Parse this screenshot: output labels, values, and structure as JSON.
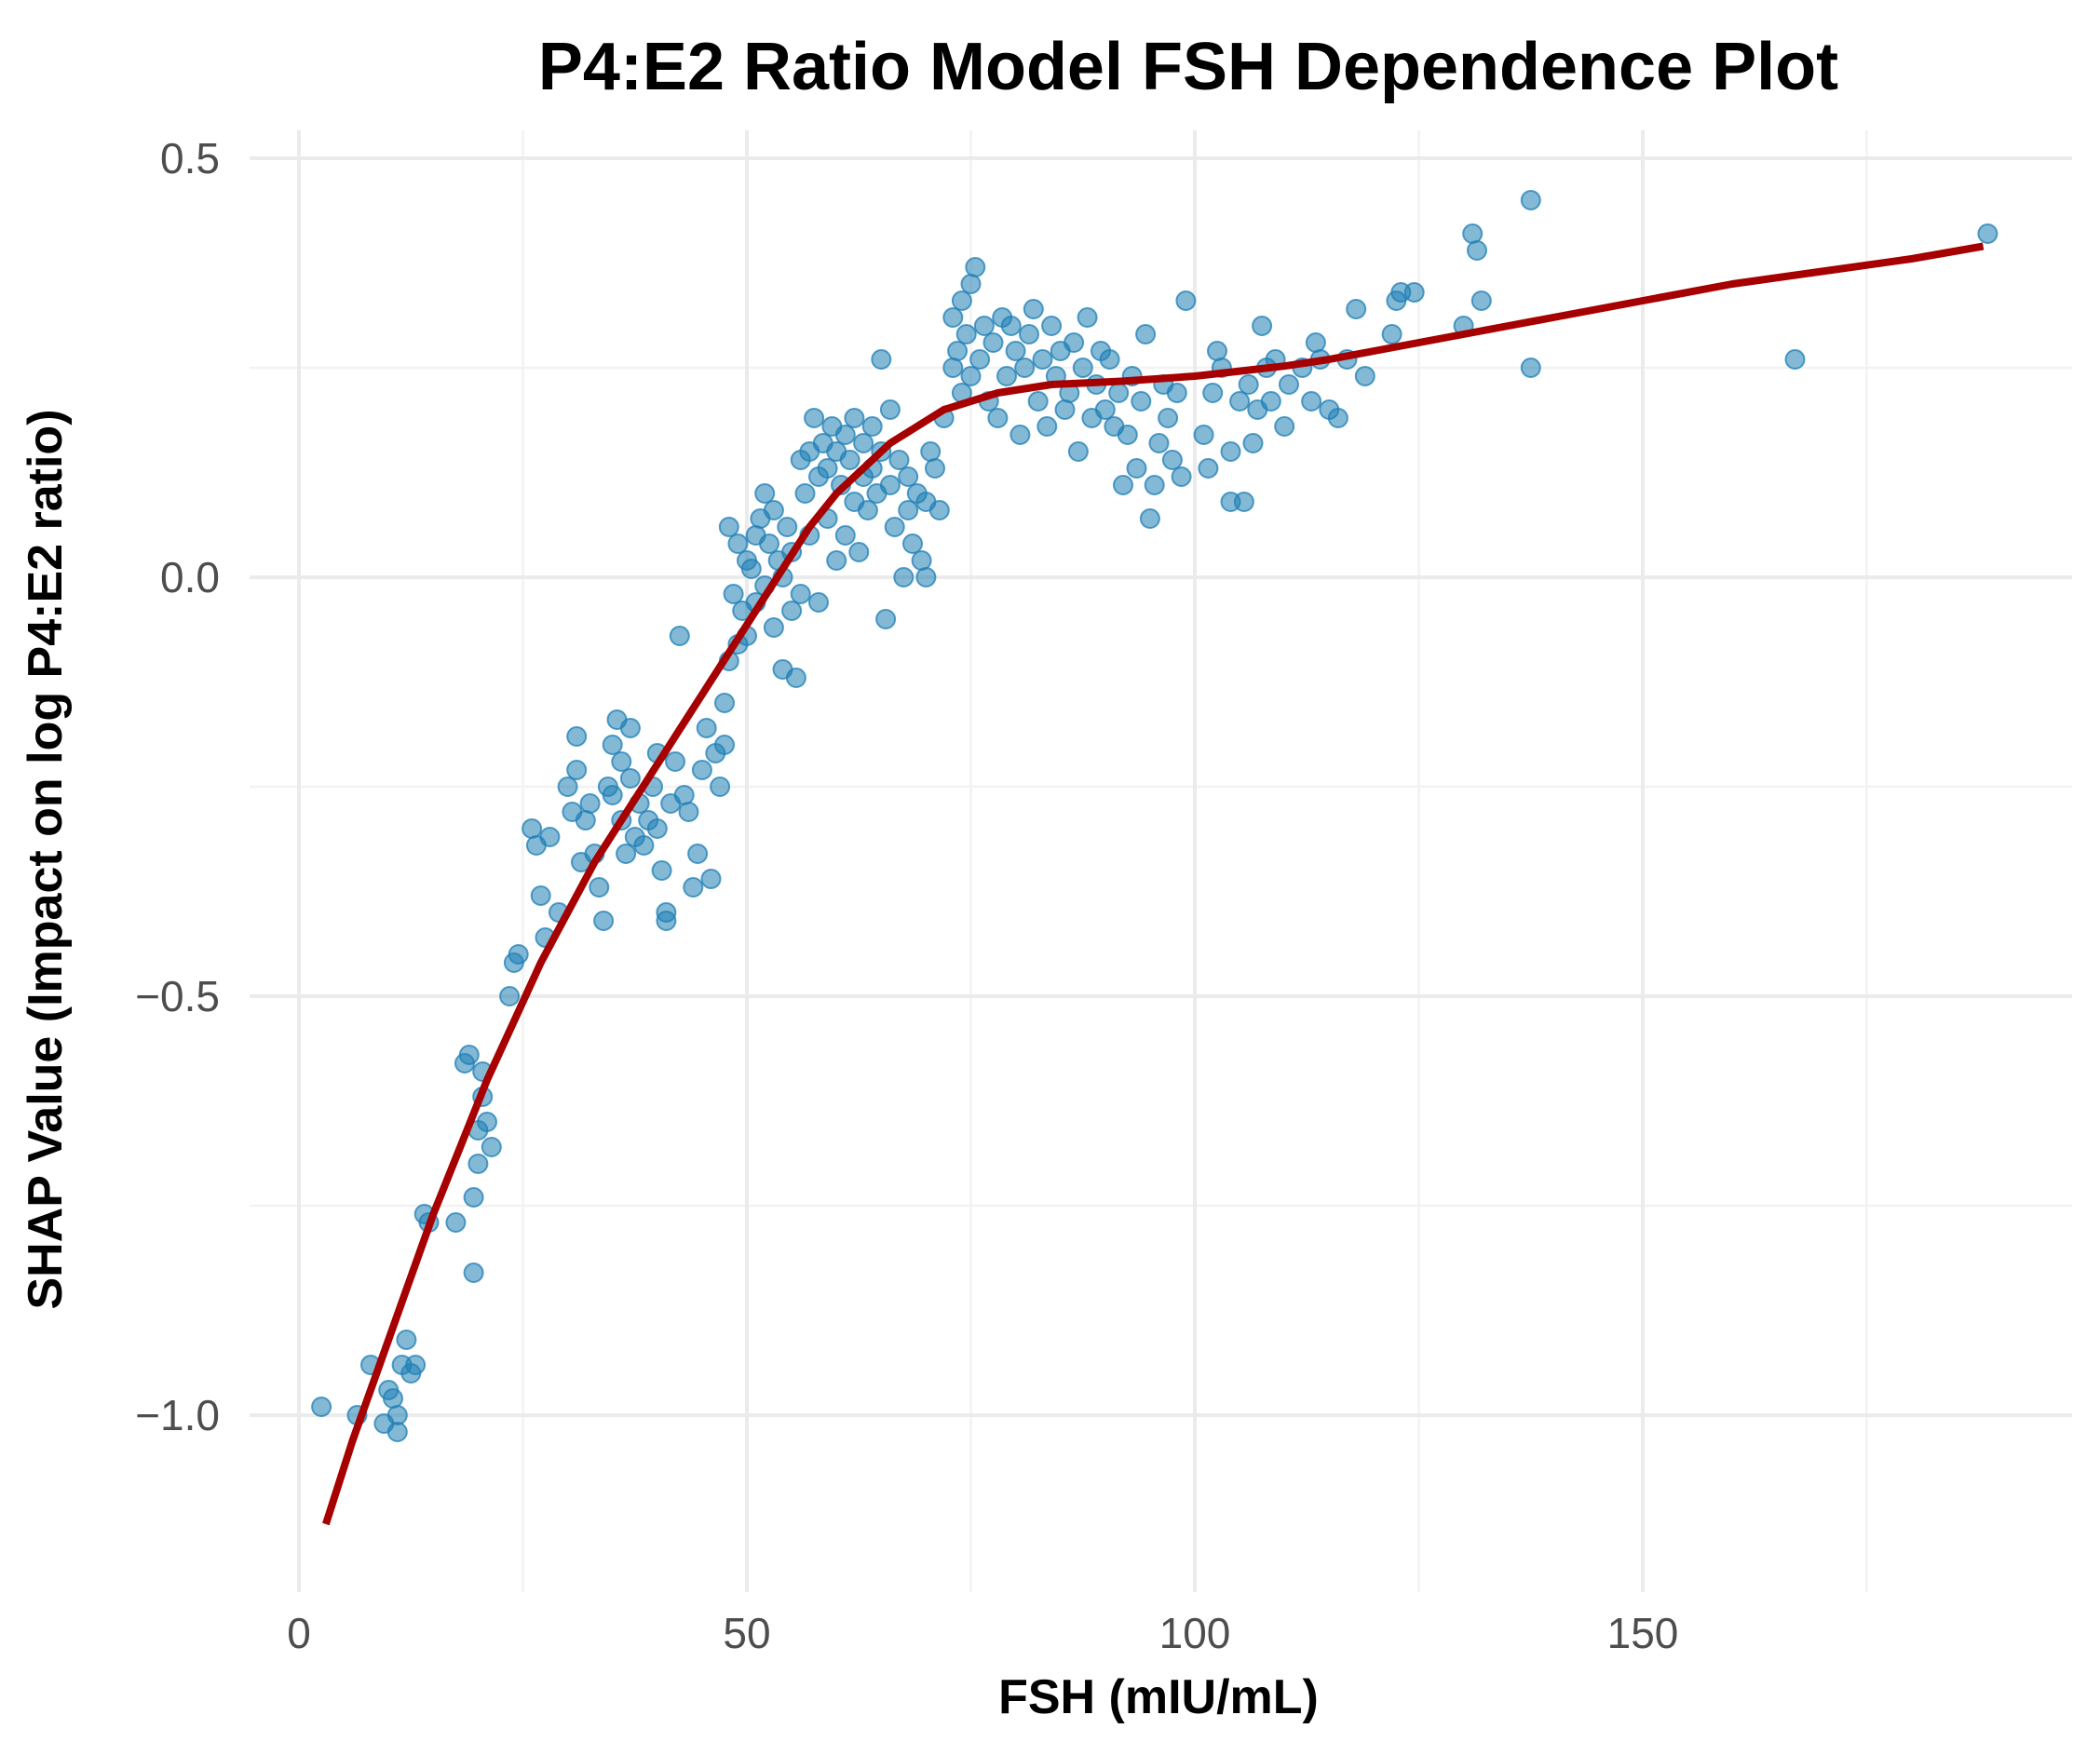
{
  "chart_data": {
    "type": "scatter",
    "title": "P4:E2 Ratio Model FSH Dependence Plot",
    "xlabel": "FSH (mIU/mL)",
    "ylabel": "SHAP Value (Impact on log P4:E2 ratio)",
    "xlim": [
      -5,
      198
    ],
    "ylim": [
      -1.2,
      0.52
    ],
    "x_ticks": [
      0,
      50,
      100,
      150
    ],
    "x_tick_labels": [
      "0",
      "50",
      "100",
      "150"
    ],
    "y_ticks": [
      -1.0,
      -0.5,
      0.0,
      0.5
    ],
    "y_tick_labels": [
      "−1.0",
      "−0.5",
      "0.0",
      "0.5"
    ],
    "grid": true,
    "series": [
      {
        "name": "SHAP values",
        "kind": "points",
        "color": "#1f7fb5",
        "opacity": 0.55,
        "points": [
          [
            2.5,
            -0.99
          ],
          [
            6.5,
            -1.0
          ],
          [
            8.0,
            -0.94
          ],
          [
            9.5,
            -1.01
          ],
          [
            10.0,
            -0.97
          ],
          [
            10.5,
            -0.98
          ],
          [
            11.0,
            -1.0
          ],
          [
            11.0,
            -1.02
          ],
          [
            11.5,
            -0.94
          ],
          [
            12.0,
            -0.91
          ],
          [
            12.5,
            -0.95
          ],
          [
            13.0,
            -0.94
          ],
          [
            14.0,
            -0.76
          ],
          [
            14.5,
            -0.77
          ],
          [
            17.5,
            -0.77
          ],
          [
            18.5,
            -0.58
          ],
          [
            19.0,
            -0.57
          ],
          [
            19.5,
            -0.74
          ],
          [
            19.5,
            -0.83
          ],
          [
            20.0,
            -0.7
          ],
          [
            20.0,
            -0.66
          ],
          [
            20.5,
            -0.62
          ],
          [
            20.5,
            -0.59
          ],
          [
            21.0,
            -0.65
          ],
          [
            21.5,
            -0.68
          ],
          [
            23.5,
            -0.5
          ],
          [
            24.0,
            -0.46
          ],
          [
            24.5,
            -0.45
          ],
          [
            26.0,
            -0.3
          ],
          [
            26.5,
            -0.32
          ],
          [
            27.0,
            -0.38
          ],
          [
            27.5,
            -0.43
          ],
          [
            28.0,
            -0.31
          ],
          [
            29.0,
            -0.4
          ],
          [
            30.0,
            -0.25
          ],
          [
            30.5,
            -0.28
          ],
          [
            31.0,
            -0.19
          ],
          [
            31.0,
            -0.23
          ],
          [
            31.5,
            -0.34
          ],
          [
            32.0,
            -0.29
          ],
          [
            32.5,
            -0.27
          ],
          [
            33.0,
            -0.33
          ],
          [
            33.5,
            -0.37
          ],
          [
            34.0,
            -0.41
          ],
          [
            34.5,
            -0.25
          ],
          [
            35.0,
            -0.2
          ],
          [
            35.0,
            -0.26
          ],
          [
            35.5,
            -0.17
          ],
          [
            36.0,
            -0.22
          ],
          [
            36.0,
            -0.29
          ],
          [
            36.5,
            -0.33
          ],
          [
            37.0,
            -0.24
          ],
          [
            37.0,
            -0.18
          ],
          [
            37.5,
            -0.31
          ],
          [
            38.0,
            -0.27
          ],
          [
            38.5,
            -0.32
          ],
          [
            39.0,
            -0.29
          ],
          [
            39.5,
            -0.25
          ],
          [
            40.0,
            -0.21
          ],
          [
            40.0,
            -0.3
          ],
          [
            40.5,
            -0.35
          ],
          [
            41.0,
            -0.4
          ],
          [
            41.0,
            -0.41
          ],
          [
            41.5,
            -0.27
          ],
          [
            42.0,
            -0.22
          ],
          [
            42.5,
            -0.07
          ],
          [
            43.0,
            -0.26
          ],
          [
            43.5,
            -0.28
          ],
          [
            44.0,
            -0.37
          ],
          [
            44.5,
            -0.33
          ],
          [
            45.0,
            -0.23
          ],
          [
            45.5,
            -0.18
          ],
          [
            46.0,
            -0.36
          ],
          [
            46.5,
            -0.21
          ],
          [
            47.0,
            -0.25
          ],
          [
            47.5,
            -0.2
          ],
          [
            47.5,
            -0.15
          ],
          [
            48.0,
            -0.1
          ],
          [
            48.0,
            0.06
          ],
          [
            48.5,
            -0.02
          ],
          [
            49.0,
            0.04
          ],
          [
            49.0,
            -0.08
          ],
          [
            49.5,
            -0.04
          ],
          [
            50.0,
            0.02
          ],
          [
            50.0,
            -0.07
          ],
          [
            50.5,
            0.01
          ],
          [
            51.0,
            0.05
          ],
          [
            51.0,
            -0.03
          ],
          [
            51.5,
            0.07
          ],
          [
            52.0,
            0.1
          ],
          [
            52.0,
            -0.01
          ],
          [
            52.5,
            0.04
          ],
          [
            53.0,
            0.08
          ],
          [
            53.0,
            -0.06
          ],
          [
            53.5,
            0.02
          ],
          [
            54.0,
            0.0
          ],
          [
            54.0,
            -0.11
          ],
          [
            54.5,
            0.06
          ],
          [
            55.0,
            -0.04
          ],
          [
            55.0,
            0.03
          ],
          [
            55.5,
            -0.12
          ],
          [
            56.0,
            0.14
          ],
          [
            56.0,
            -0.02
          ],
          [
            56.5,
            0.1
          ],
          [
            57.0,
            0.15
          ],
          [
            57.0,
            0.05
          ],
          [
            57.5,
            0.19
          ],
          [
            58.0,
            0.12
          ],
          [
            58.0,
            -0.03
          ],
          [
            58.5,
            0.16
          ],
          [
            59.0,
            0.07
          ],
          [
            59.0,
            0.13
          ],
          [
            59.5,
            0.18
          ],
          [
            60.0,
            0.15
          ],
          [
            60.0,
            0.02
          ],
          [
            60.5,
            0.11
          ],
          [
            61.0,
            0.17
          ],
          [
            61.0,
            0.05
          ],
          [
            61.5,
            0.14
          ],
          [
            62.0,
            0.19
          ],
          [
            62.0,
            0.09
          ],
          [
            62.5,
            0.03
          ],
          [
            63.0,
            0.16
          ],
          [
            63.0,
            0.12
          ],
          [
            63.5,
            0.08
          ],
          [
            64.0,
            0.18
          ],
          [
            64.0,
            0.13
          ],
          [
            64.5,
            0.1
          ],
          [
            65.0,
            0.26
          ],
          [
            65.0,
            0.15
          ],
          [
            65.5,
            -0.05
          ],
          [
            66.0,
            0.2
          ],
          [
            66.0,
            0.11
          ],
          [
            66.5,
            0.06
          ],
          [
            67.0,
            0.14
          ],
          [
            67.5,
            0.0
          ],
          [
            68.0,
            0.08
          ],
          [
            68.0,
            0.12
          ],
          [
            68.5,
            0.04
          ],
          [
            69.0,
            0.1
          ],
          [
            69.5,
            0.02
          ],
          [
            70.0,
            0.09
          ],
          [
            70.0,
            0.0
          ],
          [
            70.5,
            0.15
          ],
          [
            71.0,
            0.13
          ],
          [
            71.5,
            0.08
          ],
          [
            72.0,
            0.19
          ],
          [
            73.0,
            0.31
          ],
          [
            73.0,
            0.25
          ],
          [
            73.5,
            0.27
          ],
          [
            74.0,
            0.33
          ],
          [
            74.0,
            0.22
          ],
          [
            74.5,
            0.29
          ],
          [
            75.0,
            0.35
          ],
          [
            75.0,
            0.24
          ],
          [
            75.5,
            0.37
          ],
          [
            76.0,
            0.26
          ],
          [
            76.5,
            0.3
          ],
          [
            77.0,
            0.21
          ],
          [
            77.5,
            0.28
          ],
          [
            78.0,
            0.19
          ],
          [
            78.5,
            0.31
          ],
          [
            79.0,
            0.24
          ],
          [
            79.5,
            0.3
          ],
          [
            80.0,
            0.27
          ],
          [
            80.5,
            0.17
          ],
          [
            81.0,
            0.25
          ],
          [
            81.5,
            0.29
          ],
          [
            82.0,
            0.32
          ],
          [
            82.5,
            0.21
          ],
          [
            83.0,
            0.26
          ],
          [
            83.5,
            0.18
          ],
          [
            84.0,
            0.3
          ],
          [
            84.5,
            0.24
          ],
          [
            85.0,
            0.27
          ],
          [
            85.5,
            0.2
          ],
          [
            86.0,
            0.22
          ],
          [
            86.5,
            0.28
          ],
          [
            87.0,
            0.15
          ],
          [
            87.5,
            0.25
          ],
          [
            88.0,
            0.31
          ],
          [
            88.5,
            0.19
          ],
          [
            89.0,
            0.23
          ],
          [
            89.5,
            0.27
          ],
          [
            90.0,
            0.2
          ],
          [
            90.5,
            0.26
          ],
          [
            91.0,
            0.18
          ],
          [
            91.5,
            0.22
          ],
          [
            92.0,
            0.11
          ],
          [
            92.5,
            0.17
          ],
          [
            93.0,
            0.24
          ],
          [
            93.5,
            0.13
          ],
          [
            94.0,
            0.21
          ],
          [
            94.5,
            0.29
          ],
          [
            95.0,
            0.07
          ],
          [
            95.5,
            0.11
          ],
          [
            96.0,
            0.16
          ],
          [
            96.5,
            0.23
          ],
          [
            97.0,
            0.19
          ],
          [
            97.5,
            0.14
          ],
          [
            98.0,
            0.22
          ],
          [
            98.5,
            0.12
          ],
          [
            99.0,
            0.33
          ],
          [
            101.0,
            0.17
          ],
          [
            101.5,
            0.13
          ],
          [
            102.0,
            0.22
          ],
          [
            102.5,
            0.27
          ],
          [
            103.0,
            0.25
          ],
          [
            104.0,
            0.09
          ],
          [
            104.0,
            0.15
          ],
          [
            105.0,
            0.21
          ],
          [
            105.5,
            0.09
          ],
          [
            106.0,
            0.23
          ],
          [
            106.5,
            0.16
          ],
          [
            107.0,
            0.2
          ],
          [
            107.5,
            0.3
          ],
          [
            108.0,
            0.25
          ],
          [
            108.5,
            0.21
          ],
          [
            109.0,
            0.26
          ],
          [
            110.0,
            0.18
          ],
          [
            110.5,
            0.23
          ],
          [
            112.0,
            0.25
          ],
          [
            113.0,
            0.21
          ],
          [
            113.5,
            0.28
          ],
          [
            114.0,
            0.26
          ],
          [
            115.0,
            0.2
          ],
          [
            116.0,
            0.19
          ],
          [
            117.0,
            0.26
          ],
          [
            118.0,
            0.32
          ],
          [
            119.0,
            0.24
          ],
          [
            122.0,
            0.29
          ],
          [
            122.5,
            0.33
          ],
          [
            123.0,
            0.34
          ],
          [
            124.5,
            0.34
          ],
          [
            130.0,
            0.3
          ],
          [
            131.0,
            0.41
          ],
          [
            131.5,
            0.39
          ],
          [
            132.0,
            0.33
          ],
          [
            137.5,
            0.45
          ],
          [
            137.5,
            0.25
          ],
          [
            167.0,
            0.26
          ],
          [
            188.5,
            0.41
          ]
        ]
      },
      {
        "name": "Smoothed trend",
        "kind": "line",
        "color": "#a60000",
        "points": [
          [
            3,
            -1.13
          ],
          [
            6,
            -1.03
          ],
          [
            9,
            -0.94
          ],
          [
            12,
            -0.85
          ],
          [
            15,
            -0.76
          ],
          [
            18,
            -0.68
          ],
          [
            21,
            -0.6
          ],
          [
            24,
            -0.53
          ],
          [
            27,
            -0.46
          ],
          [
            30,
            -0.4
          ],
          [
            33,
            -0.34
          ],
          [
            36,
            -0.29
          ],
          [
            39,
            -0.24
          ],
          [
            42,
            -0.19
          ],
          [
            45,
            -0.14
          ],
          [
            48,
            -0.09
          ],
          [
            51,
            -0.04
          ],
          [
            54,
            0.01
          ],
          [
            57,
            0.06
          ],
          [
            60,
            0.1
          ],
          [
            63,
            0.13
          ],
          [
            66,
            0.16
          ],
          [
            69,
            0.18
          ],
          [
            72,
            0.2
          ],
          [
            75,
            0.21
          ],
          [
            78,
            0.22
          ],
          [
            81,
            0.225
          ],
          [
            84,
            0.23
          ],
          [
            88,
            0.232
          ],
          [
            92,
            0.234
          ],
          [
            96,
            0.237
          ],
          [
            100,
            0.24
          ],
          [
            105,
            0.246
          ],
          [
            110,
            0.252
          ],
          [
            115,
            0.26
          ],
          [
            120,
            0.27
          ],
          [
            125,
            0.28
          ],
          [
            130,
            0.29
          ],
          [
            140,
            0.31
          ],
          [
            150,
            0.33
          ],
          [
            160,
            0.35
          ],
          [
            170,
            0.365
          ],
          [
            180,
            0.38
          ],
          [
            188,
            0.395
          ]
        ]
      }
    ]
  }
}
